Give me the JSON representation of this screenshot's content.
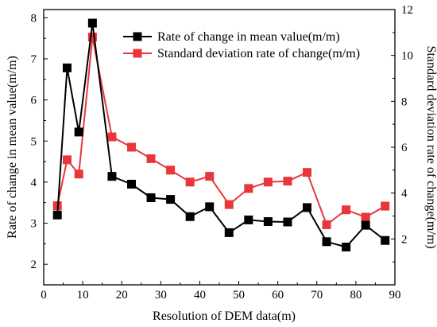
{
  "chart_data": {
    "type": "line",
    "title": "",
    "xlabel": "Resolution of DEM data(m)",
    "ylabel": "Rate of change in mean value(m/m)",
    "y2label": "Standard deviation rate of change(m/m)",
    "xlim": [
      0,
      90
    ],
    "ylim": [
      1.5,
      8.2
    ],
    "y2lim": [
      0,
      12
    ],
    "xticks": [
      0,
      10,
      20,
      30,
      40,
      50,
      60,
      70,
      80,
      90
    ],
    "yticks": [
      2,
      3,
      4,
      5,
      6,
      7,
      8
    ],
    "y2ticks": [
      2,
      4,
      6,
      8,
      10,
      12
    ],
    "grid": false,
    "legend_position": "top-right",
    "x": [
      3.5,
      6,
      9,
      12.5,
      17.5,
      22.5,
      27.5,
      32.5,
      37.5,
      42.5,
      47.5,
      52.5,
      57.5,
      62.5,
      67.5,
      72.5,
      77.5,
      82.5,
      87.5
    ],
    "series": [
      {
        "name": "Rate of change in mean value(m/m)",
        "axis": "left",
        "color": "#000000",
        "marker": "square",
        "values": [
          3.2,
          6.78,
          5.22,
          7.87,
          4.14,
          3.95,
          3.62,
          3.58,
          3.16,
          3.4,
          2.77,
          3.08,
          3.04,
          3.03,
          3.38,
          2.55,
          2.42,
          2.95,
          2.58
        ]
      },
      {
        "name": "Standard deviation rate of change(m/m)",
        "axis": "right",
        "color": "#e8373b",
        "marker": "square",
        "values": [
          3.45,
          5.45,
          4.83,
          10.8,
          6.45,
          6.0,
          5.5,
          5.0,
          4.48,
          4.73,
          3.5,
          4.2,
          4.48,
          4.52,
          4.9,
          2.62,
          3.27,
          2.95,
          3.43
        ]
      }
    ]
  }
}
